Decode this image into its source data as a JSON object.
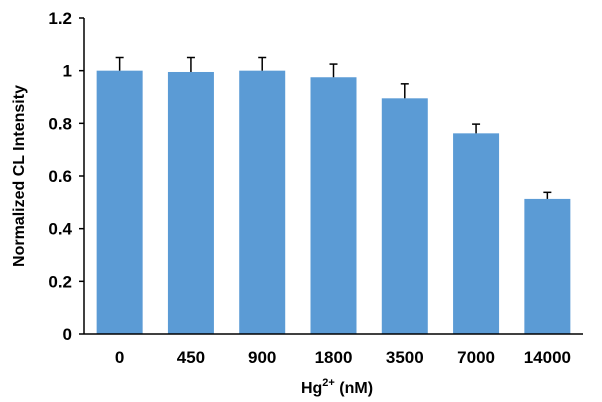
{
  "chart_data": {
    "type": "bar",
    "categories": [
      "0",
      "450",
      "900",
      "1800",
      "3500",
      "7000",
      "14000"
    ],
    "values": [
      1.0,
      0.995,
      1.0,
      0.975,
      0.895,
      0.762,
      0.513
    ],
    "errors": [
      0.05,
      0.055,
      0.05,
      0.05,
      0.055,
      0.035,
      0.025
    ],
    "ylabel": "Normalized CL Intensity",
    "xlabel_main": "Hg",
    "xlabel_superscript": "2+",
    "xlabel_unit": " (nM)",
    "ylim": [
      0,
      1.2
    ],
    "yticks": [
      "0",
      "0.2",
      "0.4",
      "0.6",
      "0.8",
      "1",
      "1.2"
    ],
    "ytick_values": [
      0,
      0.2,
      0.4,
      0.6,
      0.8,
      1.0,
      1.2
    ],
    "bar_color": "#5b9bd5",
    "error_color": "#000000",
    "grid": false,
    "legend": "none"
  }
}
